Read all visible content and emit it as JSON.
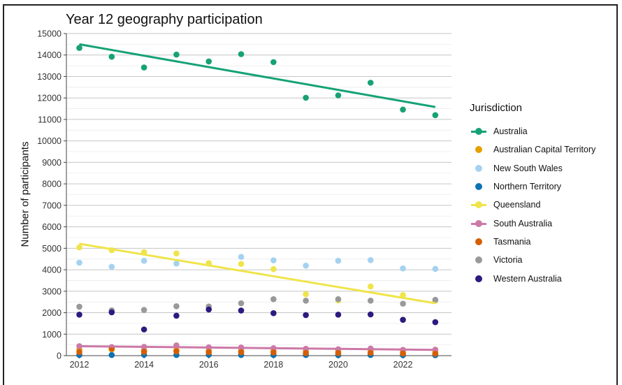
{
  "chart_data": {
    "type": "scatter",
    "title": "Year 12 geography participation",
    "xlabel": "",
    "ylabel": "Number of participants",
    "xlim": [
      2011.6,
      2023.5
    ],
    "ylim": [
      0,
      15000
    ],
    "x_ticks": [
      2012,
      2014,
      2016,
      2018,
      2020,
      2022
    ],
    "y_ticks": [
      0,
      1000,
      2000,
      3000,
      4000,
      5000,
      6000,
      7000,
      8000,
      9000,
      10000,
      11000,
      12000,
      13000,
      14000,
      15000
    ],
    "grid": true,
    "legend_title": "Jurisdiction",
    "legend_position": "right",
    "x": [
      2012,
      2013,
      2014,
      2015,
      2016,
      2017,
      2018,
      2019,
      2020,
      2021,
      2022,
      2023
    ],
    "series": [
      {
        "name": "Australia",
        "color": "#16a276",
        "trend": [
          14500,
          11580
        ],
        "values": [
          14330,
          13920,
          13420,
          14020,
          13700,
          14040,
          13670,
          12010,
          12120,
          12710,
          11460,
          11200
        ]
      },
      {
        "name": "Australian Capital Territory",
        "color": "#e69f00",
        "trend": null,
        "values": [
          280,
          290,
          250,
          260,
          250,
          230,
          220,
          200,
          190,
          210,
          170,
          160
        ]
      },
      {
        "name": "New South Wales",
        "color": "#a4d2f0",
        "trend": null,
        "values": [
          4330,
          4140,
          4420,
          4290,
          4290,
          4600,
          4440,
          4190,
          4420,
          4450,
          4060,
          4040
        ]
      },
      {
        "name": "Northern Territory",
        "color": "#0f72b2",
        "trend": null,
        "values": [
          30,
          30,
          40,
          30,
          40,
          30,
          30,
          30,
          20,
          30,
          20,
          20
        ]
      },
      {
        "name": "Queensland",
        "color": "#efe44a",
        "trend": [
          5210,
          2440
        ],
        "values": [
          5040,
          4910,
          4820,
          4760,
          4310,
          4270,
          4030,
          2860,
          2570,
          3220,
          2820,
          2560
        ]
      },
      {
        "name": "South Australia",
        "color": "#cc79a7",
        "trend": [
          440,
          270
        ],
        "values": [
          440,
          400,
          410,
          480,
          390,
          380,
          350,
          320,
          300,
          330,
          270,
          280
        ]
      },
      {
        "name": "Tasmania",
        "color": "#d55e00",
        "trend": null,
        "values": [
          170,
          330,
          180,
          200,
          160,
          160,
          150,
          120,
          120,
          130,
          100,
          90
        ]
      },
      {
        "name": "Victoria",
        "color": "#999999",
        "trend": null,
        "values": [
          2280,
          2110,
          2130,
          2300,
          2290,
          2440,
          2630,
          2560,
          2630,
          2560,
          2420,
          2600
        ]
      },
      {
        "name": "Western Australia",
        "color": "#2e1a7f",
        "trend": null,
        "values": [
          1910,
          2020,
          1220,
          1860,
          2150,
          2100,
          1980,
          1890,
          1910,
          1920,
          1670,
          1560
        ]
      }
    ]
  }
}
